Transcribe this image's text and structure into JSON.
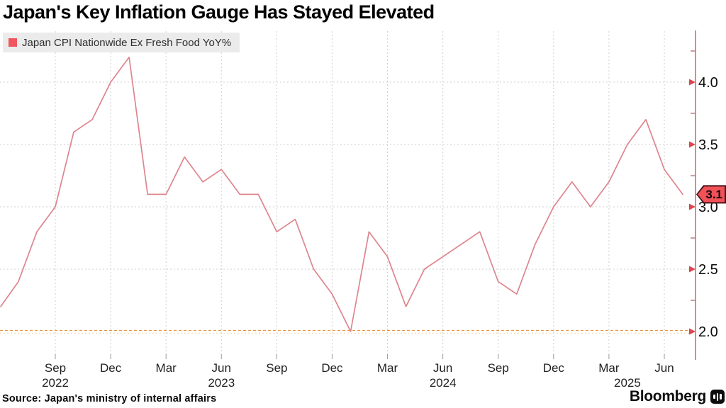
{
  "title": "Japan's Key Inflation Gauge Has Stayed Elevated",
  "legend": {
    "label": "Japan CPI Nationwide Ex Fresh Food YoY%",
    "swatch_color": "#f0565e"
  },
  "source": "Source: Japan's ministry of internal affairs",
  "brand": {
    "name": "Bloomberg",
    "icon": "bloomberg-bars-icon"
  },
  "chart_data": {
    "type": "line",
    "series_name": "Japan CPI Nationwide Ex Fresh Food YoY%",
    "months": [
      "Jun 2022",
      "Jul 2022",
      "Aug 2022",
      "Sep 2022",
      "Oct 2022",
      "Nov 2022",
      "Dec 2022",
      "Jan 2023",
      "Feb 2023",
      "Mar 2023",
      "Apr 2023",
      "May 2023",
      "Jun 2023",
      "Jul 2023",
      "Aug 2023",
      "Sep 2023",
      "Oct 2023",
      "Nov 2023",
      "Dec 2023",
      "Jan 2024",
      "Feb 2024",
      "Mar 2024",
      "Apr 2024",
      "May 2024",
      "Jun 2024",
      "Jul 2024",
      "Aug 2024",
      "Sep 2024",
      "Oct 2024",
      "Nov 2024",
      "Dec 2024",
      "Jan 2025",
      "Feb 2025",
      "Mar 2025",
      "Apr 2025",
      "May 2025",
      "Jun 2025",
      "Jul 2025"
    ],
    "values": [
      2.2,
      2.4,
      2.8,
      3.0,
      3.6,
      3.7,
      4.0,
      4.2,
      3.1,
      3.1,
      3.4,
      3.2,
      3.3,
      3.1,
      3.1,
      2.8,
      2.9,
      2.5,
      2.3,
      2.0,
      2.8,
      2.6,
      2.2,
      2.5,
      2.6,
      2.7,
      2.8,
      2.4,
      2.3,
      2.7,
      3.0,
      3.2,
      3.0,
      3.2,
      3.5,
      3.7,
      3.3,
      3.1
    ],
    "last_value_label": "3.1",
    "y_ticks_major": [
      4.0,
      3.5,
      3.0,
      2.5,
      2.0
    ],
    "y_ticks_minor": [
      4.25,
      3.75,
      3.25,
      2.75,
      2.25
    ],
    "y_tick_label_format": [
      "4.0",
      "3.5",
      "3.0",
      "2.5",
      "2.0"
    ],
    "ylim": [
      1.8,
      4.45
    ],
    "x_ticks": [
      {
        "index": 3,
        "label": "Sep"
      },
      {
        "index": 6,
        "label": "Dec"
      },
      {
        "index": 9,
        "label": "Mar"
      },
      {
        "index": 12,
        "label": "Jun"
      },
      {
        "index": 15,
        "label": "Sep"
      },
      {
        "index": 18,
        "label": "Dec"
      },
      {
        "index": 21,
        "label": "Mar"
      },
      {
        "index": 24,
        "label": "Jun"
      },
      {
        "index": 27,
        "label": "Sep"
      },
      {
        "index": 30,
        "label": "Dec"
      },
      {
        "index": 33,
        "label": "Mar"
      },
      {
        "index": 36,
        "label": "Jun"
      }
    ],
    "year_labels": [
      {
        "index": 3,
        "label": "2022"
      },
      {
        "index": 12,
        "label": "2023"
      },
      {
        "index": 24,
        "label": "2024"
      },
      {
        "index": 34,
        "label": "2025"
      }
    ],
    "target_line": {
      "value": 2.0,
      "color": "#e8963f"
    },
    "line_color": "#dd858d",
    "axis_color": "#e0767e",
    "arrow_color": "#e0444c",
    "grid": true,
    "grid_color": "#cfcfcf",
    "legend_position": "top-left",
    "yaxis_side": "right"
  }
}
